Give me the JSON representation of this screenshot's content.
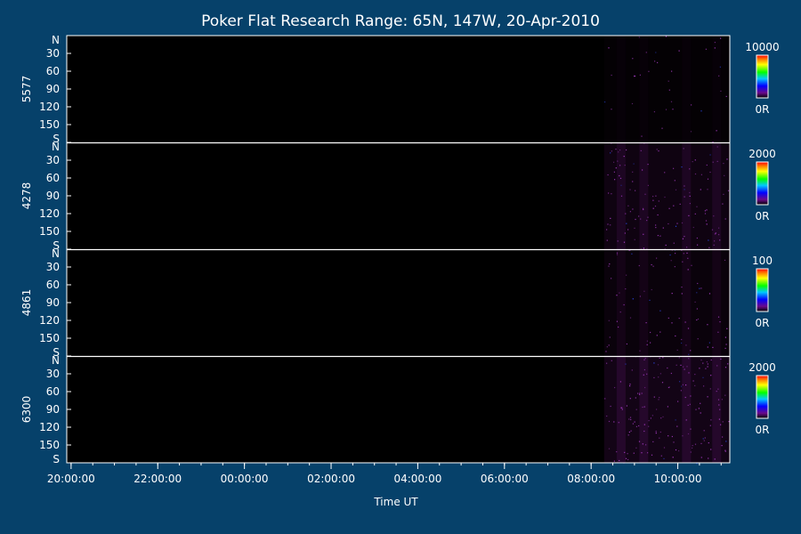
{
  "chart_data": {
    "type": "heatmap",
    "title": "Poker Flat Research Range: 65N, 147W, 20-Apr-2010",
    "xlabel": "Time UT",
    "x_tick_labels": [
      "20:00:00",
      "22:00:00",
      "00:00:00",
      "02:00:00",
      "04:00:00",
      "06:00:00",
      "08:00:00",
      "10:00:00"
    ],
    "x_range_hours": [
      19.9,
      35.2
    ],
    "x_tick_hours": [
      20,
      22,
      24,
      26,
      28,
      30,
      32,
      34
    ],
    "y_tick_labels": [
      "N",
      "30",
      "60",
      "90",
      "120",
      "150",
      "S"
    ],
    "y_tick_values": [
      0,
      30,
      60,
      90,
      120,
      150,
      180
    ],
    "y_range": [
      0,
      180
    ],
    "data_start_hour": 32.3,
    "data_end_hour": 35.2,
    "colors": {
      "background": "#06416a",
      "plot": "#000000",
      "emission": "#7a1a8f"
    },
    "panels": [
      {
        "name": "5577",
        "colorbar_max": "10000",
        "colorbar_min": "0R",
        "intensity": 0.15
      },
      {
        "name": "4278",
        "colorbar_max": "2000",
        "colorbar_min": "0R",
        "intensity": 0.55
      },
      {
        "name": "4861",
        "colorbar_max": "100",
        "colorbar_min": "0R",
        "intensity": 0.35
      },
      {
        "name": "6300",
        "colorbar_max": "2000",
        "colorbar_min": "0R",
        "intensity": 0.7
      }
    ]
  }
}
